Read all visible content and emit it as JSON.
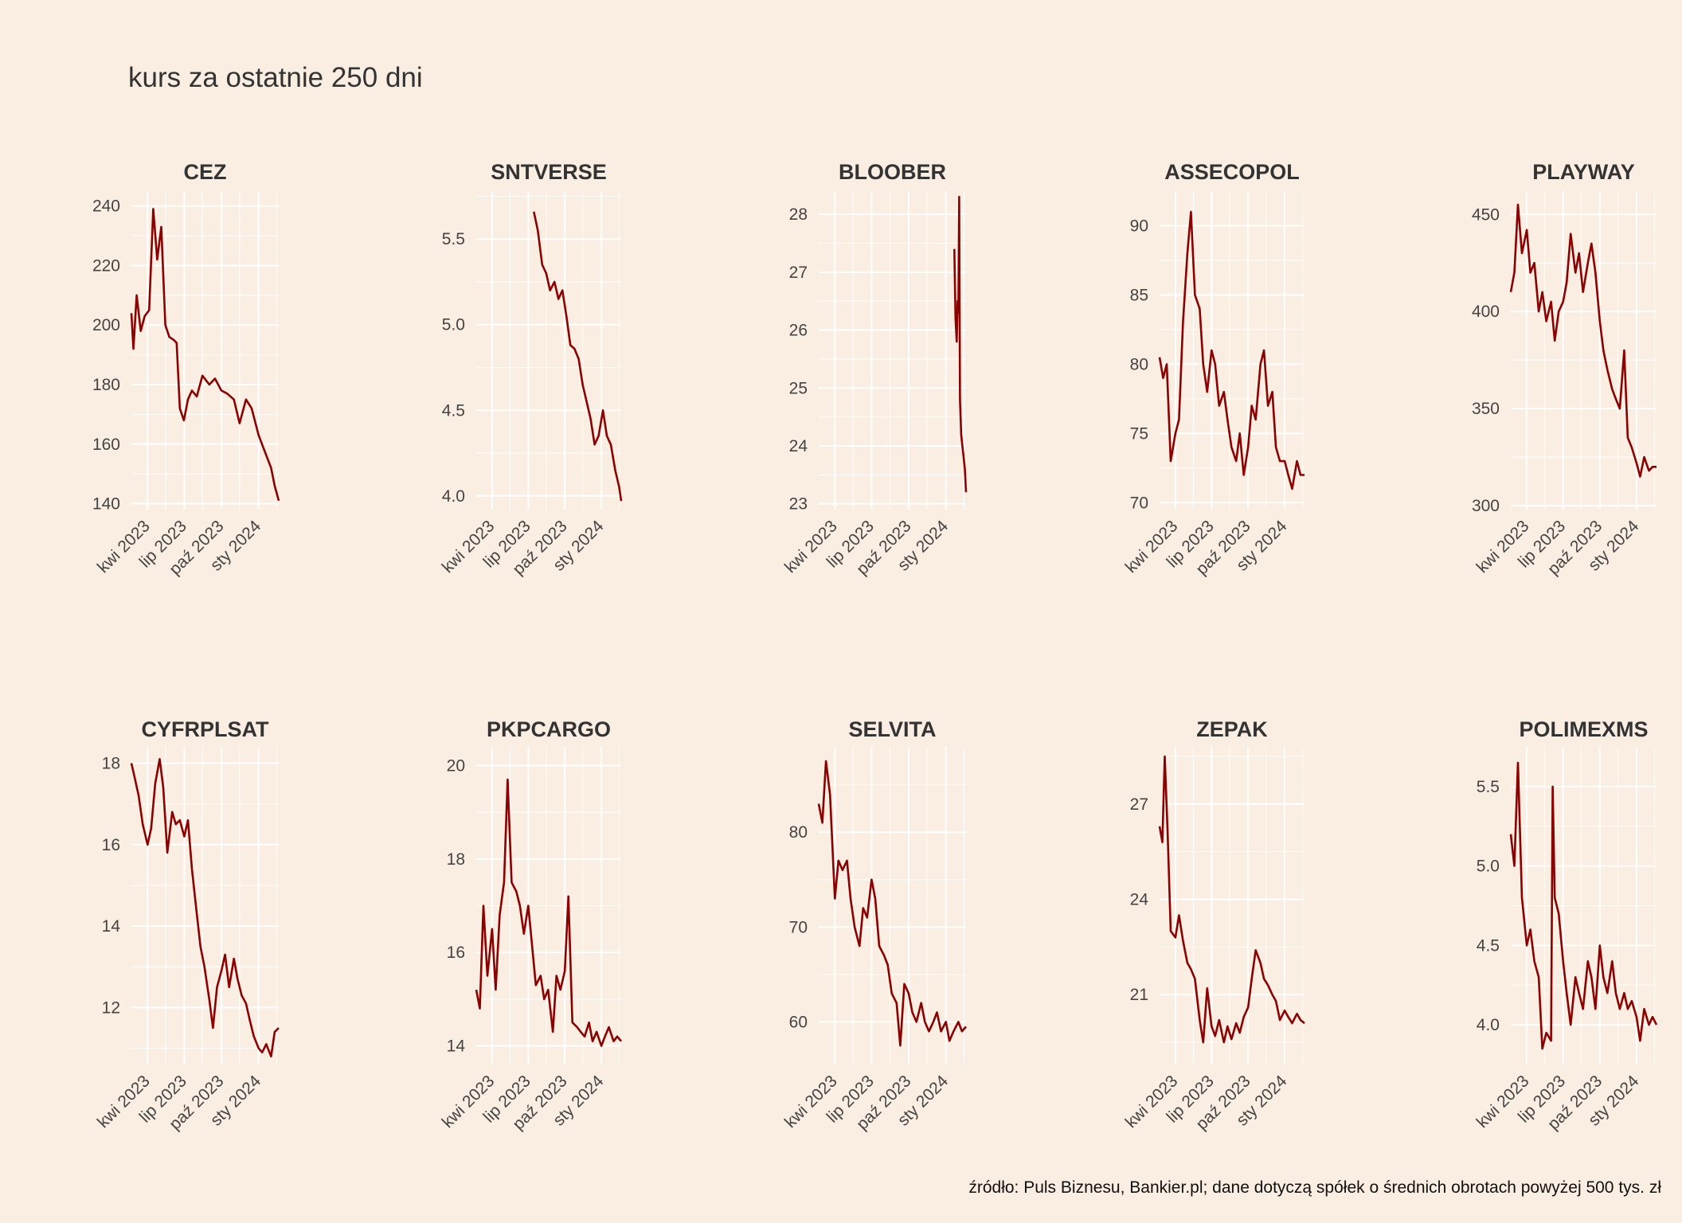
{
  "title": "kurs za ostatnie 250 dni",
  "caption": "źródło: Puls Biznesu, Bankier.pl; dane dotyczą spółek o średnich obrotach powyżej 500 tys. zł",
  "colors": {
    "background": "#faede1",
    "line": "#8b0000",
    "grid": "#ffffff"
  },
  "chart_data": [
    {
      "type": "line",
      "title": "CEZ",
      "x_ticks": [
        "kwi 2023",
        "lip 2023",
        "paź 2023",
        "sty 2024"
      ],
      "x_range": [
        "2023-02-20",
        "2024-02-20"
      ],
      "yticks": [
        140,
        160,
        180,
        200,
        220,
        240
      ],
      "ylim": [
        138,
        245
      ],
      "series": [
        {
          "x": [
            "2023-02-20",
            "2023-02-25",
            "2023-03-05",
            "2023-03-15",
            "2023-03-25",
            "2023-04-05",
            "2023-04-15",
            "2023-04-25",
            "2023-05-05",
            "2023-05-15",
            "2023-05-25",
            "2023-06-05",
            "2023-06-12",
            "2023-06-20",
            "2023-06-30",
            "2023-07-10",
            "2023-07-20",
            "2023-08-01",
            "2023-08-15",
            "2023-09-01",
            "2023-09-15",
            "2023-10-01",
            "2023-10-15",
            "2023-11-01",
            "2023-11-15",
            "2023-12-01",
            "2023-12-15",
            "2024-01-01",
            "2024-01-15",
            "2024-02-01",
            "2024-02-10",
            "2024-02-20"
          ],
          "y": [
            204,
            192,
            210,
            198,
            203,
            205,
            239,
            222,
            233,
            200,
            196,
            195,
            194,
            172,
            168,
            175,
            178,
            176,
            183,
            180,
            182,
            178,
            177,
            175,
            167,
            175,
            172,
            163,
            158,
            152,
            146,
            141
          ]
        }
      ]
    },
    {
      "type": "line",
      "title": "SNTVERSE",
      "x_ticks": [
        "kwi 2023",
        "lip 2023",
        "paź 2023",
        "sty 2024"
      ],
      "x_range": [
        "2023-02-20",
        "2024-02-20"
      ],
      "yticks": [
        4.0,
        4.5,
        5.0,
        5.5
      ],
      "ylim": [
        3.92,
        5.78
      ],
      "series": [
        {
          "x": [
            "2023-07-15",
            "2023-07-25",
            "2023-08-05",
            "2023-08-15",
            "2023-08-25",
            "2023-09-05",
            "2023-09-15",
            "2023-09-25",
            "2023-10-05",
            "2023-10-15",
            "2023-10-25",
            "2023-11-05",
            "2023-11-15",
            "2023-11-25",
            "2023-12-05",
            "2023-12-15",
            "2023-12-25",
            "2024-01-05",
            "2024-01-15",
            "2024-01-25",
            "2024-02-05",
            "2024-02-15",
            "2024-02-20"
          ],
          "y": [
            5.66,
            5.55,
            5.35,
            5.3,
            5.2,
            5.25,
            5.15,
            5.2,
            5.05,
            4.88,
            4.86,
            4.8,
            4.65,
            4.55,
            4.45,
            4.3,
            4.35,
            4.5,
            4.35,
            4.3,
            4.15,
            4.05,
            3.97
          ]
        }
      ]
    },
    {
      "type": "line",
      "title": "BLOOBER",
      "x_ticks": [
        "kwi 2023",
        "lip 2023",
        "paź 2023",
        "sty 2024"
      ],
      "x_range": [
        "2023-02-20",
        "2024-02-20"
      ],
      "yticks": [
        23,
        24,
        25,
        26,
        27,
        28
      ],
      "ylim": [
        22.9,
        28.4
      ],
      "series": [
        {
          "x": [
            "2024-01-22",
            "2024-01-25",
            "2024-01-28",
            "2024-01-30",
            "2024-02-01",
            "2024-02-03",
            "2024-02-05",
            "2024-02-08",
            "2024-02-11",
            "2024-02-14",
            "2024-02-17",
            "2024-02-20"
          ],
          "y": [
            27.4,
            26.2,
            25.8,
            26.5,
            26.3,
            28.3,
            24.8,
            24.2,
            24.0,
            23.8,
            23.6,
            23.2
          ]
        }
      ]
    },
    {
      "type": "line",
      "title": "ASSECOPOL",
      "x_ticks": [
        "kwi 2023",
        "lip 2023",
        "paź 2023",
        "sty 2024"
      ],
      "x_range": [
        "2023-02-20",
        "2024-02-20"
      ],
      "yticks": [
        70,
        75,
        80,
        85,
        90
      ],
      "ylim": [
        69.5,
        92.5
      ],
      "series": [
        {
          "x": [
            "2023-02-20",
            "2023-03-01",
            "2023-03-10",
            "2023-03-20",
            "2023-04-01",
            "2023-04-10",
            "2023-04-20",
            "2023-05-01",
            "2023-05-10",
            "2023-05-20",
            "2023-06-01",
            "2023-06-10",
            "2023-06-20",
            "2023-07-01",
            "2023-07-10",
            "2023-07-20",
            "2023-08-01",
            "2023-08-10",
            "2023-08-20",
            "2023-09-01",
            "2023-09-10",
            "2023-09-20",
            "2023-10-01",
            "2023-10-10",
            "2023-10-20",
            "2023-11-01",
            "2023-11-10",
            "2023-11-20",
            "2023-12-01",
            "2023-12-10",
            "2023-12-20",
            "2024-01-01",
            "2024-01-10",
            "2024-01-20",
            "2024-02-01",
            "2024-02-10",
            "2024-02-20"
          ],
          "y": [
            80.5,
            79,
            80,
            73,
            75,
            76,
            83,
            88,
            91,
            85,
            84,
            80,
            78,
            81,
            80,
            77,
            78,
            76,
            74,
            73,
            75,
            72,
            74,
            77,
            76,
            80,
            81,
            77,
            78,
            74,
            73,
            73,
            72,
            71,
            73,
            72,
            72
          ]
        }
      ]
    },
    {
      "type": "line",
      "title": "PLAYWAY",
      "x_ticks": [
        "kwi 2023",
        "lip 2023",
        "paź 2023",
        "sty 2024"
      ],
      "x_range": [
        "2023-02-20",
        "2024-02-20"
      ],
      "yticks": [
        300,
        350,
        400,
        450
      ],
      "ylim": [
        298,
        462
      ],
      "series": [
        {
          "x": [
            "2023-02-20",
            "2023-03-01",
            "2023-03-10",
            "2023-03-20",
            "2023-04-01",
            "2023-04-10",
            "2023-04-20",
            "2023-05-01",
            "2023-05-10",
            "2023-05-20",
            "2023-06-01",
            "2023-06-10",
            "2023-06-20",
            "2023-07-01",
            "2023-07-10",
            "2023-07-20",
            "2023-08-01",
            "2023-08-10",
            "2023-08-20",
            "2023-09-01",
            "2023-09-10",
            "2023-09-20",
            "2023-10-01",
            "2023-10-10",
            "2023-10-20",
            "2023-11-01",
            "2023-11-10",
            "2023-11-20",
            "2023-12-01",
            "2023-12-10",
            "2023-12-20",
            "2024-01-01",
            "2024-01-10",
            "2024-01-20",
            "2024-02-01",
            "2024-02-10",
            "2024-02-20"
          ],
          "y": [
            410,
            420,
            455,
            430,
            442,
            420,
            425,
            400,
            410,
            395,
            405,
            385,
            400,
            405,
            415,
            440,
            420,
            430,
            410,
            425,
            435,
            420,
            395,
            380,
            370,
            360,
            355,
            350,
            380,
            335,
            330,
            322,
            315,
            325,
            318,
            320,
            320
          ]
        }
      ]
    },
    {
      "type": "line",
      "title": "CYFRPLSAT",
      "x_ticks": [
        "kwi 2023",
        "lip 2023",
        "paź 2023",
        "sty 2024"
      ],
      "x_range": [
        "2023-02-20",
        "2024-02-20"
      ],
      "yticks": [
        12,
        14,
        16,
        18
      ],
      "ylim": [
        10.6,
        18.4
      ],
      "series": [
        {
          "x": [
            "2023-02-20",
            "2023-03-01",
            "2023-03-10",
            "2023-03-20",
            "2023-04-01",
            "2023-04-10",
            "2023-04-20",
            "2023-05-01",
            "2023-05-10",
            "2023-05-20",
            "2023-06-01",
            "2023-06-10",
            "2023-06-20",
            "2023-07-01",
            "2023-07-10",
            "2023-07-20",
            "2023-08-01",
            "2023-08-10",
            "2023-08-20",
            "2023-09-01",
            "2023-09-10",
            "2023-09-20",
            "2023-10-01",
            "2023-10-10",
            "2023-10-20",
            "2023-11-01",
            "2023-11-10",
            "2023-11-20",
            "2023-12-01",
            "2023-12-10",
            "2023-12-20",
            "2024-01-01",
            "2024-01-10",
            "2024-01-20",
            "2024-02-01",
            "2024-02-10",
            "2024-02-20"
          ],
          "y": [
            18,
            17.6,
            17.2,
            16.5,
            16,
            16.4,
            17.5,
            18.1,
            17.4,
            15.8,
            16.8,
            16.5,
            16.6,
            16.2,
            16.6,
            15.4,
            14.3,
            13.5,
            13,
            12.2,
            11.5,
            12.5,
            12.9,
            13.3,
            12.5,
            13.2,
            12.7,
            12.3,
            12.1,
            11.7,
            11.3,
            11,
            10.9,
            11.1,
            10.8,
            11.4,
            11.5
          ]
        }
      ]
    },
    {
      "type": "line",
      "title": "PKPCARGO",
      "x_ticks": [
        "kwi 2023",
        "lip 2023",
        "paź 2023",
        "sty 2024"
      ],
      "x_range": [
        "2023-02-20",
        "2024-02-20"
      ],
      "yticks": [
        14,
        16,
        18,
        20
      ],
      "ylim": [
        13.6,
        20.4
      ],
      "series": [
        {
          "x": [
            "2023-02-20",
            "2023-03-01",
            "2023-03-10",
            "2023-03-20",
            "2023-04-01",
            "2023-04-10",
            "2023-04-20",
            "2023-05-01",
            "2023-05-10",
            "2023-05-20",
            "2023-06-01",
            "2023-06-10",
            "2023-06-20",
            "2023-07-01",
            "2023-07-10",
            "2023-07-20",
            "2023-08-01",
            "2023-08-10",
            "2023-08-20",
            "2023-09-01",
            "2023-09-10",
            "2023-09-20",
            "2023-10-01",
            "2023-10-10",
            "2023-10-20",
            "2023-11-01",
            "2023-11-10",
            "2023-11-20",
            "2023-12-01",
            "2023-12-10",
            "2023-12-20",
            "2024-01-01",
            "2024-01-10",
            "2024-01-20",
            "2024-02-01",
            "2024-02-10",
            "2024-02-20"
          ],
          "y": [
            15.2,
            14.8,
            17,
            15.5,
            16.5,
            15.2,
            16.8,
            17.5,
            19.7,
            17.5,
            17.3,
            17,
            16.4,
            17,
            16.2,
            15.3,
            15.5,
            15,
            15.2,
            14.3,
            15.5,
            15.2,
            15.6,
            17.2,
            14.5,
            14.4,
            14.3,
            14.2,
            14.5,
            14.1,
            14.3,
            14,
            14.2,
            14.4,
            14.1,
            14.2,
            14.1
          ]
        }
      ]
    },
    {
      "type": "line",
      "title": "SELVITA",
      "x_ticks": [
        "kwi 2023",
        "lip 2023",
        "paź 2023",
        "sty 2024"
      ],
      "x_range": [
        "2023-02-20",
        "2024-02-20"
      ],
      "yticks": [
        60,
        70,
        80
      ],
      "ylim": [
        55.5,
        89
      ],
      "series": [
        {
          "x": [
            "2023-02-20",
            "2023-03-01",
            "2023-03-10",
            "2023-03-20",
            "2023-04-01",
            "2023-04-10",
            "2023-04-20",
            "2023-05-01",
            "2023-05-10",
            "2023-05-20",
            "2023-06-01",
            "2023-06-10",
            "2023-06-20",
            "2023-07-01",
            "2023-07-10",
            "2023-07-20",
            "2023-08-01",
            "2023-08-10",
            "2023-08-20",
            "2023-09-01",
            "2023-09-10",
            "2023-09-20",
            "2023-10-01",
            "2023-10-10",
            "2023-10-20",
            "2023-11-01",
            "2023-11-10",
            "2023-11-20",
            "2023-12-01",
            "2023-12-10",
            "2023-12-20",
            "2024-01-01",
            "2024-01-10",
            "2024-01-20",
            "2024-02-01",
            "2024-02-10",
            "2024-02-20"
          ],
          "y": [
            83,
            81,
            87.5,
            84,
            73,
            77,
            76,
            77,
            73,
            70,
            68,
            72,
            71,
            75,
            73,
            68,
            67,
            66,
            63,
            62,
            57.5,
            64,
            63,
            61,
            60,
            62,
            60,
            59,
            60,
            61,
            59,
            60,
            58,
            59,
            60,
            59,
            59.5
          ]
        }
      ]
    },
    {
      "type": "line",
      "title": "ZEPAK",
      "x_ticks": [
        "kwi 2023",
        "lip 2023",
        "paź 2023",
        "sty 2024"
      ],
      "x_range": [
        "2023-02-20",
        "2024-02-20"
      ],
      "yticks": [
        21,
        24,
        27
      ],
      "ylim": [
        18.8,
        28.8
      ],
      "series": [
        {
          "x": [
            "2023-02-20",
            "2023-02-27",
            "2023-03-05",
            "2023-03-12",
            "2023-03-20",
            "2023-04-01",
            "2023-04-10",
            "2023-04-20",
            "2023-05-01",
            "2023-05-10",
            "2023-05-20",
            "2023-06-01",
            "2023-06-10",
            "2023-06-20",
            "2023-07-01",
            "2023-07-10",
            "2023-07-20",
            "2023-08-01",
            "2023-08-10",
            "2023-08-20",
            "2023-09-01",
            "2023-09-10",
            "2023-09-20",
            "2023-10-01",
            "2023-10-10",
            "2023-10-20",
            "2023-11-01",
            "2023-11-10",
            "2023-11-20",
            "2023-12-01",
            "2023-12-10",
            "2023-12-20",
            "2024-01-01",
            "2024-01-10",
            "2024-01-20",
            "2024-02-01",
            "2024-02-10",
            "2024-02-20"
          ],
          "y": [
            26.3,
            25.8,
            28.5,
            26.2,
            23,
            22.8,
            23.5,
            22.7,
            22,
            21.8,
            21.5,
            20.2,
            19.5,
            21.2,
            20,
            19.7,
            20.2,
            19.5,
            20,
            19.6,
            20.1,
            19.8,
            20.3,
            20.6,
            21.5,
            22.4,
            22,
            21.5,
            21.3,
            21,
            20.8,
            20.2,
            20.5,
            20.3,
            20.1,
            20.4,
            20.2,
            20.1
          ]
        }
      ]
    },
    {
      "type": "line",
      "title": "POLIMEXMS",
      "x_ticks": [
        "kwi 2023",
        "lip 2023",
        "paź 2023",
        "sty 2024"
      ],
      "x_range": [
        "2023-02-20",
        "2024-02-20"
      ],
      "yticks": [
        4.0,
        4.5,
        5.0,
        5.5
      ],
      "ylim": [
        3.75,
        5.75
      ],
      "series": [
        {
          "x": [
            "2023-02-20",
            "2023-03-01",
            "2023-03-10",
            "2023-03-20",
            "2023-04-01",
            "2023-04-10",
            "2023-04-20",
            "2023-05-01",
            "2023-05-10",
            "2023-05-20",
            "2023-06-01",
            "2023-06-05",
            "2023-06-10",
            "2023-06-20",
            "2023-07-01",
            "2023-07-10",
            "2023-07-20",
            "2023-08-01",
            "2023-08-10",
            "2023-08-20",
            "2023-09-01",
            "2023-09-10",
            "2023-09-20",
            "2023-10-01",
            "2023-10-10",
            "2023-10-20",
            "2023-11-01",
            "2023-11-10",
            "2023-11-20",
            "2023-12-01",
            "2023-12-10",
            "2023-12-20",
            "2024-01-01",
            "2024-01-10",
            "2024-01-20",
            "2024-02-01",
            "2024-02-10",
            "2024-02-20"
          ],
          "y": [
            5.2,
            5.0,
            5.65,
            4.8,
            4.5,
            4.6,
            4.4,
            4.3,
            3.85,
            3.95,
            3.9,
            5.5,
            4.8,
            4.7,
            4.4,
            4.2,
            4.0,
            4.3,
            4.2,
            4.1,
            4.4,
            4.3,
            4.1,
            4.5,
            4.3,
            4.2,
            4.4,
            4.2,
            4.1,
            4.2,
            4.1,
            4.15,
            4.05,
            3.9,
            4.1,
            4.0,
            4.05,
            4.0
          ]
        }
      ]
    }
  ]
}
